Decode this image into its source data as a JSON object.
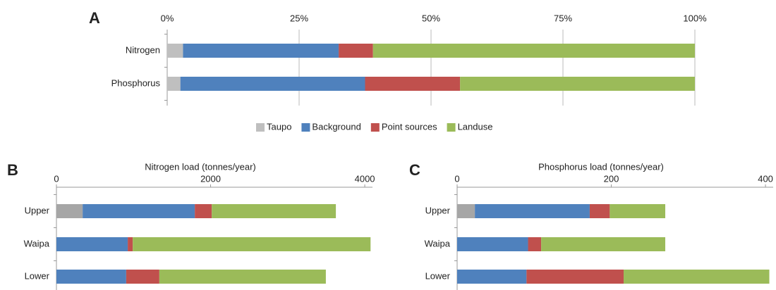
{
  "chart_data": [
    {
      "type": "bar",
      "label": "A",
      "categories": [
        "Nitrogen",
        "Phosphorus"
      ],
      "series": [
        {
          "name": "Taupo",
          "color": "#bfbfbf",
          "values": [
            3,
            2.5
          ]
        },
        {
          "name": "Background",
          "color": "#4f81bd",
          "values": [
            29.5,
            35
          ]
        },
        {
          "name": "Point sources",
          "color": "#c0504d",
          "values": [
            6.5,
            18
          ]
        },
        {
          "name": "Landuse",
          "color": "#9bbb59",
          "values": [
            61,
            44.5
          ]
        }
      ],
      "xlim": [
        0,
        100
      ],
      "xticks": [
        {
          "value": 0,
          "label": "0%"
        },
        {
          "value": 25,
          "label": "25%"
        },
        {
          "value": 50,
          "label": "50%"
        },
        {
          "value": 75,
          "label": "75%"
        },
        {
          "value": 100,
          "label": "100%"
        }
      ],
      "grid": true,
      "legend": "bottom"
    },
    {
      "type": "bar",
      "label": "B",
      "x_label": "Nitrogen load (tonnes/year)",
      "categories": [
        "Upper",
        "Waipa",
        "Lower"
      ],
      "series": [
        {
          "name": "Taupo",
          "color": "#a6a6a6",
          "values": [
            340,
            0,
            0
          ]
        },
        {
          "name": "Background",
          "color": "#4f81bd",
          "values": [
            1455,
            925,
            905
          ]
        },
        {
          "name": "Point sources",
          "color": "#c0504d",
          "values": [
            220,
            65,
            430
          ]
        },
        {
          "name": "Landuse",
          "color": "#9bbb59",
          "values": [
            1610,
            3085,
            2160
          ]
        }
      ],
      "xlim": [
        0,
        4100
      ],
      "xticks": [
        0,
        2000,
        4000
      ],
      "grid": false
    },
    {
      "type": "bar",
      "label": "C",
      "x_label": "Phosphorus load (tonnes/year)",
      "categories": [
        "Upper",
        "Waipa",
        "Lower"
      ],
      "series": [
        {
          "name": "Taupo",
          "color": "#a6a6a6",
          "values": [
            23,
            0,
            0
          ]
        },
        {
          "name": "Background",
          "color": "#4f81bd",
          "values": [
            149,
            92,
            90
          ]
        },
        {
          "name": "Point sources",
          "color": "#c0504d",
          "values": [
            26,
            17,
            126
          ]
        },
        {
          "name": "Landuse",
          "color": "#9bbb59",
          "values": [
            72,
            161,
            189
          ]
        }
      ],
      "xlim": [
        0,
        410
      ],
      "xticks": [
        0,
        200,
        400
      ],
      "grid": false
    }
  ]
}
